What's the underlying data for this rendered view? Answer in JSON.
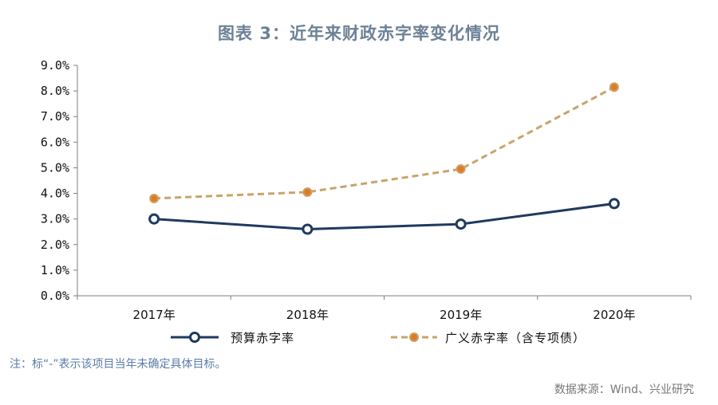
{
  "note": "注：标“-”表示该项目当年未确定具体目标。",
  "source": "数据来源：Wind、兴业研究",
  "colors": {
    "budget": "#1f3a5f",
    "broad_line": "#c9a36b",
    "broad_marker": "#e07b20",
    "axis": "#7f7f7f"
  },
  "chart_data": {
    "type": "line",
    "title": "图表 3：近年来财政赤字率变化情况",
    "categories": [
      "2017年",
      "2018年",
      "2019年",
      "2020年"
    ],
    "ylim": [
      0,
      9
    ],
    "y_ticks": [
      "0.0%",
      "1.0%",
      "2.0%",
      "3.0%",
      "4.0%",
      "5.0%",
      "6.0%",
      "7.0%",
      "8.0%",
      "9.0%"
    ],
    "grid": false,
    "legend": "bottom",
    "series": [
      {
        "name": "预算赤字率",
        "values": [
          3.0,
          2.6,
          2.8,
          3.6
        ],
        "style": "solid",
        "marker": "hollow-circle"
      },
      {
        "name": "广义赤字率（含专项债）",
        "values": [
          3.8,
          4.05,
          4.95,
          8.15
        ],
        "style": "dashed",
        "marker": "filled-circle"
      }
    ]
  }
}
